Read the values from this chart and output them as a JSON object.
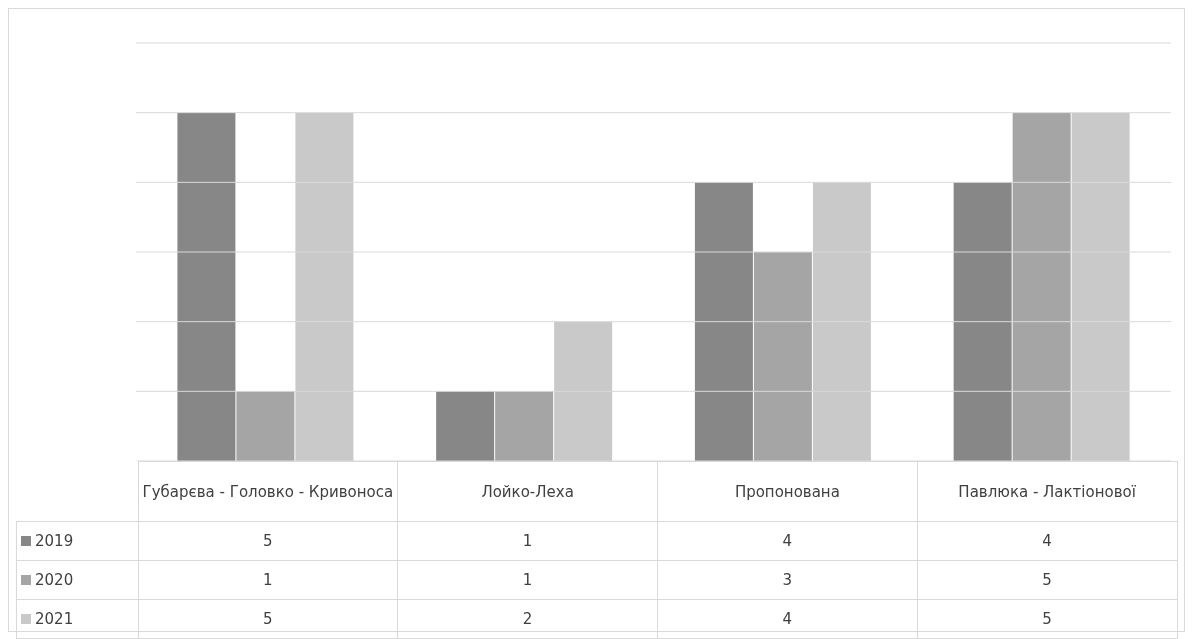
{
  "chart_data": {
    "type": "bar",
    "categories": [
      "Губарєва - Головко - Кривоноса",
      "Лойко-Леха",
      "Пропонована",
      "Павлюка - Лактіонової"
    ],
    "series": [
      {
        "name": "2019",
        "color": "#878787",
        "values": [
          5,
          1,
          4,
          4
        ]
      },
      {
        "name": "2020",
        "color": "#a5a5a5",
        "values": [
          1,
          1,
          3,
          5
        ]
      },
      {
        "name": "2021",
        "color": "#c9c9c9",
        "values": [
          5,
          2,
          4,
          5
        ]
      }
    ],
    "ylim": [
      0,
      6
    ],
    "yticks": [
      {
        "value": 0,
        "label": null
      },
      {
        "value": 1,
        "label": null
      },
      {
        "value": 2,
        "label": null
      },
      {
        "value": 3,
        "label": null
      },
      {
        "value": 4,
        "label": null
      },
      {
        "value": 5,
        "label": null
      },
      {
        "value": 6,
        "label": null
      }
    ],
    "grid": "y",
    "legend": "bottom",
    "data_labels": true,
    "tick_labels": "x"
  }
}
